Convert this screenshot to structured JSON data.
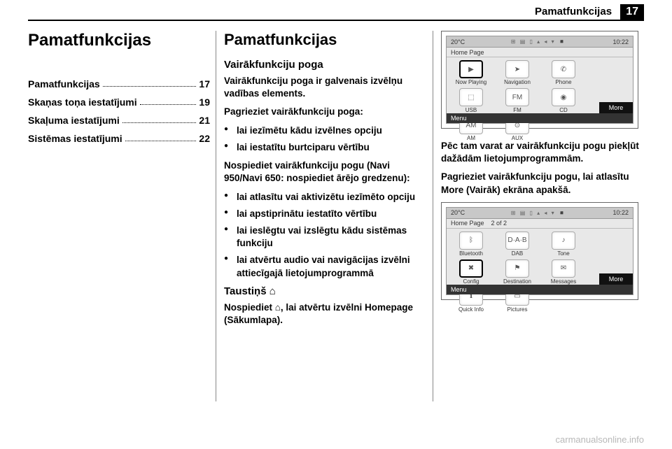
{
  "header": {
    "running_title": "Pamatfunkcijas",
    "page_number": "17"
  },
  "col1": {
    "chapter_title": "Pamatfunkcijas",
    "toc": [
      {
        "label": "Pamatfunkcijas",
        "page": "17"
      },
      {
        "label": "Skaņas toņa iestatījumi",
        "page": "19"
      },
      {
        "label": "Skaļuma iestatījumi",
        "page": "21"
      },
      {
        "label": "Sistēmas iestatījumi",
        "page": "22"
      }
    ]
  },
  "col2": {
    "section_title": "Pamatfunkcijas",
    "sub_title": "Vairākfunkciju poga",
    "p1": "Vairākfunkciju poga ir galvenais izvēlņu vadības elements.",
    "p2": "Pagrieziet vairākfunkciju poga:",
    "bullets1": [
      "lai iezīmētu kādu izvēlnes opciju",
      "lai iestatītu burtciparu vērtību"
    ],
    "p3": "Nospiediet vairākfunkciju pogu (Navi 950/Navi 650: nospiediet ārējo gredzenu):",
    "bullets2": [
      "lai atlasītu vai aktivizētu iezīmēto opciju",
      "lai apstiprinātu iestatīto vērtību",
      "lai ieslēgtu vai izslēgtu kādu sistēmas funkciju",
      "lai atvērtu audio vai navigācijas izvēlni attiecīgajā lietojumprogrammā"
    ],
    "key_title": "Taustiņš ⌂",
    "p4": "Nospiediet ⌂, lai atvērtu izvēlni Homepage (Sākumlapa)."
  },
  "col3": {
    "p1": "Pēc tam varat ar vairākfunkciju pogu piekļūt dažādām lietojumprogrammām.",
    "p2": "Pagrieziet vairākfunkciju pogu, lai atlasītu More (Vairāk) ekrāna apakšā."
  },
  "screens": {
    "statusbar": {
      "temp": "20°C",
      "time": "10:22",
      "icons": "⊞ ▤ ▯ ▴ ◂ ▾ ◾"
    },
    "screen1": {
      "subbar": "Home Page",
      "apps": [
        {
          "label": "Now Playing",
          "icon": "▶",
          "selected": true
        },
        {
          "label": "Navigation",
          "icon": "➤"
        },
        {
          "label": "Phone",
          "icon": "✆"
        },
        {
          "label": "USB",
          "icon": "⬚"
        },
        {
          "label": "FM",
          "icon": "FM"
        },
        {
          "label": "CD",
          "icon": "◉"
        },
        {
          "label": "AM",
          "icon": "AM"
        },
        {
          "label": "AUX",
          "icon": "⊙"
        }
      ],
      "bottom_left": "Menu",
      "more": "More"
    },
    "screen2": {
      "subbar_left": "Home Page",
      "subbar_mid": "2 of 2",
      "apps": [
        {
          "label": "Bluetooth",
          "icon": "ᛒ"
        },
        {
          "label": "DAB",
          "icon": "D·A·B"
        },
        {
          "label": "Tone",
          "icon": "♪"
        },
        {
          "label": "Config",
          "icon": "✖",
          "selected": true
        },
        {
          "label": "Destination",
          "icon": "⚑"
        },
        {
          "label": "Messages",
          "icon": "✉"
        },
        {
          "label": "Quick Info",
          "icon": "ℹ"
        },
        {
          "label": "Pictures",
          "icon": "▭"
        }
      ],
      "bottom_left": "Menu",
      "more": "More"
    }
  },
  "watermark": "carmanualsonline.info"
}
